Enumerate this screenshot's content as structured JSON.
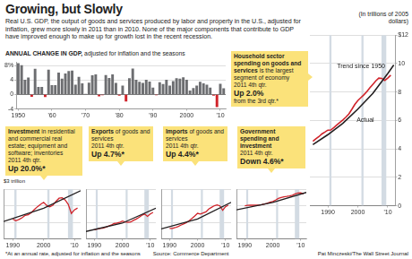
{
  "title": "Growing, but Slowly",
  "subtitle": "Real U.S. GDP, the output of goods and services produced by labor and property in the U.S., adjusted for inflation, grew more slowly in 2011 than in 2010. None of the major components that contribute to GDP have improved enough to make up for growth lost in the recent recession.",
  "footnote": "*At an annual rate, adjusted for inflation and the seasons",
  "source": "Source: Commerce Department",
  "credit": "Pat Minczeski/The Wall Street Journal",
  "chart_data": [
    {
      "type": "bar",
      "title": "ANNUAL CHANGE IN GDP,",
      "subtitle": "adjusted for inflation and the seasons",
      "x": [
        1950,
        1951,
        1952,
        1953,
        1954,
        1955,
        1956,
        1957,
        1958,
        1959,
        1960,
        1961,
        1962,
        1963,
        1964,
        1965,
        1966,
        1967,
        1968,
        1969,
        1970,
        1971,
        1972,
        1973,
        1974,
        1975,
        1976,
        1977,
        1978,
        1979,
        1980,
        1981,
        1982,
        1983,
        1984,
        1985,
        1986,
        1987,
        1988,
        1989,
        1990,
        1991,
        1992,
        1993,
        1994,
        1995,
        1996,
        1997,
        1998,
        1999,
        2000,
        2001,
        2002,
        2003,
        2004,
        2005,
        2006,
        2007,
        2008,
        2009,
        2010,
        2011
      ],
      "values": [
        8.7,
        8.1,
        4.1,
        4.7,
        -0.6,
        7.1,
        2.1,
        2.1,
        -0.7,
        6.9,
        2.6,
        2.6,
        6.1,
        4.4,
        5.8,
        6.5,
        6.6,
        2.7,
        4.9,
        3.1,
        0.2,
        3.3,
        5.3,
        5.6,
        -0.5,
        -0.2,
        5.4,
        4.6,
        5.6,
        3.2,
        -0.3,
        2.5,
        -1.9,
        4.5,
        7.2,
        4.1,
        3.5,
        3.2,
        4.1,
        3.6,
        1.9,
        -0.2,
        3.4,
        2.9,
        4.1,
        2.5,
        3.7,
        4.5,
        4.4,
        4.8,
        4.1,
        1.1,
        1.8,
        2.5,
        3.5,
        3.1,
        2.7,
        1.9,
        -0.3,
        -3.5,
        3.0,
        1.7
      ],
      "colors": [
        "#6d6e71",
        "#6d6e71",
        "#6d6e71",
        "#6d6e71",
        "#d0232a",
        "#6d6e71",
        "#6d6e71",
        "#6d6e71",
        "#d0232a",
        "#6d6e71",
        "#6d6e71",
        "#6d6e71",
        "#6d6e71",
        "#6d6e71",
        "#6d6e71",
        "#6d6e71",
        "#6d6e71",
        "#6d6e71",
        "#6d6e71",
        "#6d6e71",
        "#6d6e71",
        "#6d6e71",
        "#6d6e71",
        "#6d6e71",
        "#d0232a",
        "#d0232a",
        "#6d6e71",
        "#6d6e71",
        "#6d6e71",
        "#6d6e71",
        "#d0232a",
        "#6d6e71",
        "#d0232a",
        "#6d6e71",
        "#6d6e71",
        "#6d6e71",
        "#6d6e71",
        "#6d6e71",
        "#6d6e71",
        "#6d6e71",
        "#6d6e71",
        "#d0232a",
        "#6d6e71",
        "#6d6e71",
        "#6d6e71",
        "#6d6e71",
        "#6d6e71",
        "#6d6e71",
        "#6d6e71",
        "#6d6e71",
        "#6d6e71",
        "#6d6e71",
        "#6d6e71",
        "#6d6e71",
        "#6d6e71",
        "#6d6e71",
        "#6d6e71",
        "#6d6e71",
        "#d0232a",
        "#d0232a",
        "#6d6e71",
        "#6d6e71"
      ],
      "xlim": [
        1949.4,
        2011.6
      ],
      "xticks": [
        1950,
        {
          "value": 1960,
          "label": "'60"
        },
        {
          "value": 1970,
          "label": "'70"
        },
        {
          "value": 1980,
          "label": "'80"
        },
        {
          "value": 1990,
          "label": "'90"
        },
        2000,
        {
          "value": 2010,
          "label": "'10"
        }
      ],
      "ylim": [
        -4,
        9
      ],
      "yticks": [
        -4,
        0,
        4,
        {
          "value": 8,
          "label": "8%"
        }
      ],
      "grid": true
    },
    {
      "type": "line",
      "callout": {
        "heading": "Investment",
        "text": "in residential and commercial real estate; equipment and software; inventories",
        "period": "2011 4th qtr.",
        "change": "Up 20.0%*"
      },
      "ylabel": "$3 trillion",
      "series": [
        {
          "color": "#231f20",
          "x": [
            1987,
            2000,
            2012
          ],
          "values": [
            1.05,
            1.85,
            2.9
          ]
        },
        {
          "color": "#d0232a",
          "x": [
            1990,
            1991,
            1992,
            1993,
            1994,
            1995,
            1996,
            1997,
            1998,
            1999,
            2000,
            2001,
            2002,
            2003,
            2004,
            2005,
            2006,
            2007,
            2008,
            2009,
            2010,
            2011
          ],
          "values": [
            1.19,
            1.09,
            1.17,
            1.27,
            1.42,
            1.45,
            1.58,
            1.77,
            1.94,
            2.08,
            2.2,
            2.02,
            1.93,
            2.03,
            2.26,
            2.45,
            2.48,
            2.34,
            2.08,
            1.53,
            1.75,
            1.86
          ]
        }
      ],
      "recessions": [
        [
          1990.5,
          1991.2
        ],
        [
          2001.2,
          2001.9
        ],
        [
          2007.9,
          2009.5
        ]
      ],
      "xlim": [
        1987,
        2012
      ],
      "xticks": [
        1990,
        2000,
        {
          "value": 2010,
          "label": "'10"
        }
      ],
      "ylim": [
        0,
        3
      ],
      "yticks": [
        0,
        1,
        2,
        3
      ],
      "tick_labels": "x",
      "grid": true
    },
    {
      "type": "line",
      "callout": {
        "heading": "Exports",
        "text": "of goods and services",
        "period": "2011 4th qtr.",
        "change": "Up 4.7%*"
      },
      "series": [
        {
          "color": "#231f20",
          "x": [
            1987,
            2000,
            2012
          ],
          "values": [
            0.45,
            0.95,
            1.85
          ]
        },
        {
          "color": "#d0232a",
          "x": [
            1990,
            1991,
            1992,
            1993,
            1994,
            1995,
            1996,
            1997,
            1998,
            1999,
            2000,
            2001,
            2002,
            2003,
            2004,
            2005,
            2006,
            2007,
            2008,
            2009,
            2010,
            2011
          ],
          "values": [
            0.55,
            0.59,
            0.63,
            0.65,
            0.7,
            0.77,
            0.83,
            0.93,
            0.95,
            0.99,
            1.08,
            1.02,
            1.0,
            1.02,
            1.12,
            1.2,
            1.3,
            1.42,
            1.5,
            1.36,
            1.5,
            1.6
          ]
        }
      ],
      "recessions": [
        [
          1990.5,
          1991.2
        ],
        [
          2001.2,
          2001.9
        ],
        [
          2007.9,
          2009.5
        ]
      ],
      "xlim": [
        1987,
        2012
      ],
      "xticks": [
        1990,
        2000,
        {
          "value": 2010,
          "label": "'10"
        }
      ],
      "ylim": [
        0,
        3
      ],
      "yticks": [
        0,
        1,
        2,
        3
      ],
      "tick_labels": "x",
      "grid": true
    },
    {
      "type": "line",
      "callout": {
        "heading": "Imports",
        "text": "of goods and services",
        "period": "2011 4th qtr.",
        "change": "Up 4.4%*"
      },
      "series": [
        {
          "color": "#231f20",
          "x": [
            1987,
            2000,
            2012
          ],
          "values": [
            0.6,
            1.2,
            2.2
          ]
        },
        {
          "color": "#d0232a",
          "x": [
            1990,
            1991,
            1992,
            1993,
            1994,
            1995,
            1996,
            1997,
            1998,
            1999,
            2000,
            2001,
            2002,
            2003,
            2004,
            2005,
            2006,
            2007,
            2008,
            2009,
            2010,
            2011
          ],
          "values": [
            0.63,
            0.63,
            0.68,
            0.74,
            0.83,
            0.9,
            0.98,
            1.1,
            1.23,
            1.38,
            1.54,
            1.5,
            1.56,
            1.63,
            1.8,
            1.9,
            2.0,
            2.05,
            1.99,
            1.72,
            1.94,
            2.03
          ]
        }
      ],
      "recessions": [
        [
          1990.5,
          1991.2
        ],
        [
          2001.2,
          2001.9
        ],
        [
          2007.9,
          2009.5
        ]
      ],
      "xlim": [
        1987,
        2012
      ],
      "xticks": [
        1990,
        2000,
        {
          "value": 2010,
          "label": "'10"
        }
      ],
      "ylim": [
        0,
        3
      ],
      "yticks": [
        0,
        1,
        2,
        3
      ],
      "tick_labels": "x",
      "grid": true
    },
    {
      "type": "line",
      "callout": {
        "heading": "Government spending and investment",
        "period": "2011 4th qtr.",
        "change": "Down 4.6%*"
      },
      "series": [
        {
          "color": "#231f20",
          "x": [
            1987,
            2000,
            2012
          ],
          "values": [
            1.75,
            2.2,
            2.8
          ]
        },
        {
          "color": "#d0232a",
          "x": [
            1990,
            1991,
            1992,
            1993,
            1994,
            1995,
            1996,
            1997,
            1998,
            1999,
            2000,
            2001,
            2002,
            2003,
            2004,
            2005,
            2006,
            2007,
            2008,
            2009,
            2010,
            2011
          ],
          "values": [
            2.0,
            2.02,
            2.04,
            2.03,
            2.03,
            2.04,
            2.06,
            2.1,
            2.14,
            2.21,
            2.25,
            2.34,
            2.44,
            2.5,
            2.54,
            2.56,
            2.59,
            2.63,
            2.71,
            2.76,
            2.78,
            2.71
          ]
        }
      ],
      "recessions": [
        [
          1990.5,
          1991.2
        ],
        [
          2001.2,
          2001.9
        ],
        [
          2007.9,
          2009.5
        ]
      ],
      "xlim": [
        1987,
        2012
      ],
      "xticks": [
        1990,
        2000,
        {
          "value": 2010,
          "label": "'10"
        }
      ],
      "ylim": [
        0,
        3
      ],
      "yticks": [
        0,
        1,
        2,
        3
      ],
      "tick_labels": "x",
      "grid": true
    },
    {
      "type": "line",
      "title": "(In trillions of 2005 dollars)",
      "callout": {
        "heading": "Household sector spending on goods and services",
        "text": "is the largest segment of economy",
        "period": "2011 4th qtr.",
        "change": "Up 2.0%",
        "note": "from the 3rd qtr.*"
      },
      "series": [
        {
          "name": "Trend since 1950",
          "color": "#231f20",
          "x": [
            1985,
            1990,
            1995,
            2000,
            2005,
            2010,
            2012
          ],
          "values": [
            4.3,
            5.0,
            5.8,
            6.8,
            7.9,
            9.3,
            9.9
          ]
        },
        {
          "name": "Actual",
          "color": "#d0232a",
          "x": [
            1985,
            1986,
            1987,
            1988,
            1989,
            1990,
            1991,
            1992,
            1993,
            1994,
            1995,
            1996,
            1997,
            1998,
            1999,
            2000,
            2001,
            2002,
            2003,
            2004,
            2005,
            2006,
            2007,
            2008,
            2009,
            2010,
            2011
          ],
          "values": [
            4.54,
            4.71,
            4.86,
            5.05,
            5.18,
            5.32,
            5.33,
            5.5,
            5.68,
            5.86,
            6.03,
            6.23,
            6.45,
            6.78,
            7.13,
            7.4,
            7.6,
            7.8,
            8.03,
            8.29,
            8.53,
            8.78,
            8.98,
            8.96,
            8.82,
            8.98,
            9.18
          ]
        }
      ],
      "recessions": [
        [
          1990.5,
          1991.2
        ],
        [
          2001.2,
          2001.9
        ],
        [
          2007.9,
          2009.5
        ]
      ],
      "xlim": [
        1984,
        2012.5
      ],
      "xticks": [
        1990,
        2000,
        {
          "value": 2010,
          "label": "'10"
        }
      ],
      "ylim": [
        0,
        12
      ],
      "yticks": [
        0,
        2,
        4,
        6,
        8,
        10,
        {
          "value": 12,
          "label": "$12"
        }
      ],
      "grid": true
    }
  ]
}
